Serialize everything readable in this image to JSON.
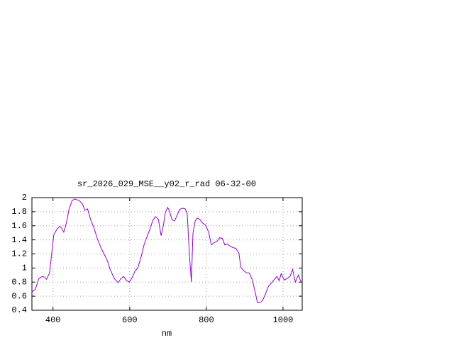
{
  "chart_data": {
    "type": "line",
    "title": "sr_2026_029_MSE__y02_r_rad 06-32-00",
    "x_label": "nm",
    "x": [
      345,
      354,
      363,
      372,
      378,
      383,
      391,
      396,
      402,
      409,
      417,
      422,
      428,
      435,
      442,
      450,
      457,
      468,
      477,
      483,
      490,
      498,
      507,
      516,
      525,
      535,
      542,
      549,
      560,
      570,
      577,
      584,
      592,
      599,
      606,
      614,
      621,
      630,
      638,
      645,
      652,
      660,
      667,
      675,
      682,
      688,
      693,
      699,
      704,
      710,
      717,
      723,
      730,
      737,
      745,
      750,
      756,
      761,
      765,
      771,
      776,
      783,
      790,
      798,
      806,
      813,
      820,
      828,
      835,
      842,
      848,
      855,
      862,
      870,
      877,
      885,
      890,
      898,
      905,
      912,
      920,
      927,
      933,
      940,
      947,
      954,
      962,
      969,
      976,
      984,
      990,
      995,
      1003,
      1010,
      1018,
      1025,
      1032,
      1040,
      1047
    ],
    "series": [
      {
        "color": "#9400d3",
        "values": [
          0.66,
          0.7,
          0.85,
          0.88,
          0.87,
          0.84,
          0.93,
          1.18,
          1.47,
          1.54,
          1.59,
          1.57,
          1.51,
          1.64,
          1.84,
          1.96,
          1.98,
          1.96,
          1.91,
          1.82,
          1.84,
          1.69,
          1.57,
          1.41,
          1.29,
          1.18,
          1.1,
          0.98,
          0.85,
          0.79,
          0.85,
          0.88,
          0.82,
          0.8,
          0.86,
          0.96,
          1.0,
          1.16,
          1.34,
          1.44,
          1.54,
          1.67,
          1.73,
          1.69,
          1.46,
          1.61,
          1.79,
          1.86,
          1.81,
          1.69,
          1.67,
          1.74,
          1.83,
          1.85,
          1.84,
          1.77,
          1.18,
          0.8,
          1.49,
          1.67,
          1.71,
          1.69,
          1.64,
          1.61,
          1.51,
          1.33,
          1.36,
          1.38,
          1.43,
          1.42,
          1.33,
          1.34,
          1.31,
          1.29,
          1.28,
          1.21,
          1.01,
          0.96,
          0.93,
          0.93,
          0.83,
          0.67,
          0.51,
          0.51,
          0.54,
          0.63,
          0.74,
          0.78,
          0.83,
          0.88,
          0.82,
          0.92,
          0.83,
          0.85,
          0.88,
          0.98,
          0.8,
          0.9,
          0.8
        ]
      }
    ],
    "xlim": [
      345,
      1050
    ],
    "xticks": [
      400,
      600,
      800,
      1000
    ],
    "ylim": [
      0.4,
      2
    ],
    "yticks": [
      0.4,
      0.6,
      0.8,
      1,
      1.2,
      1.4,
      1.6,
      1.8,
      2
    ],
    "grid": true
  }
}
